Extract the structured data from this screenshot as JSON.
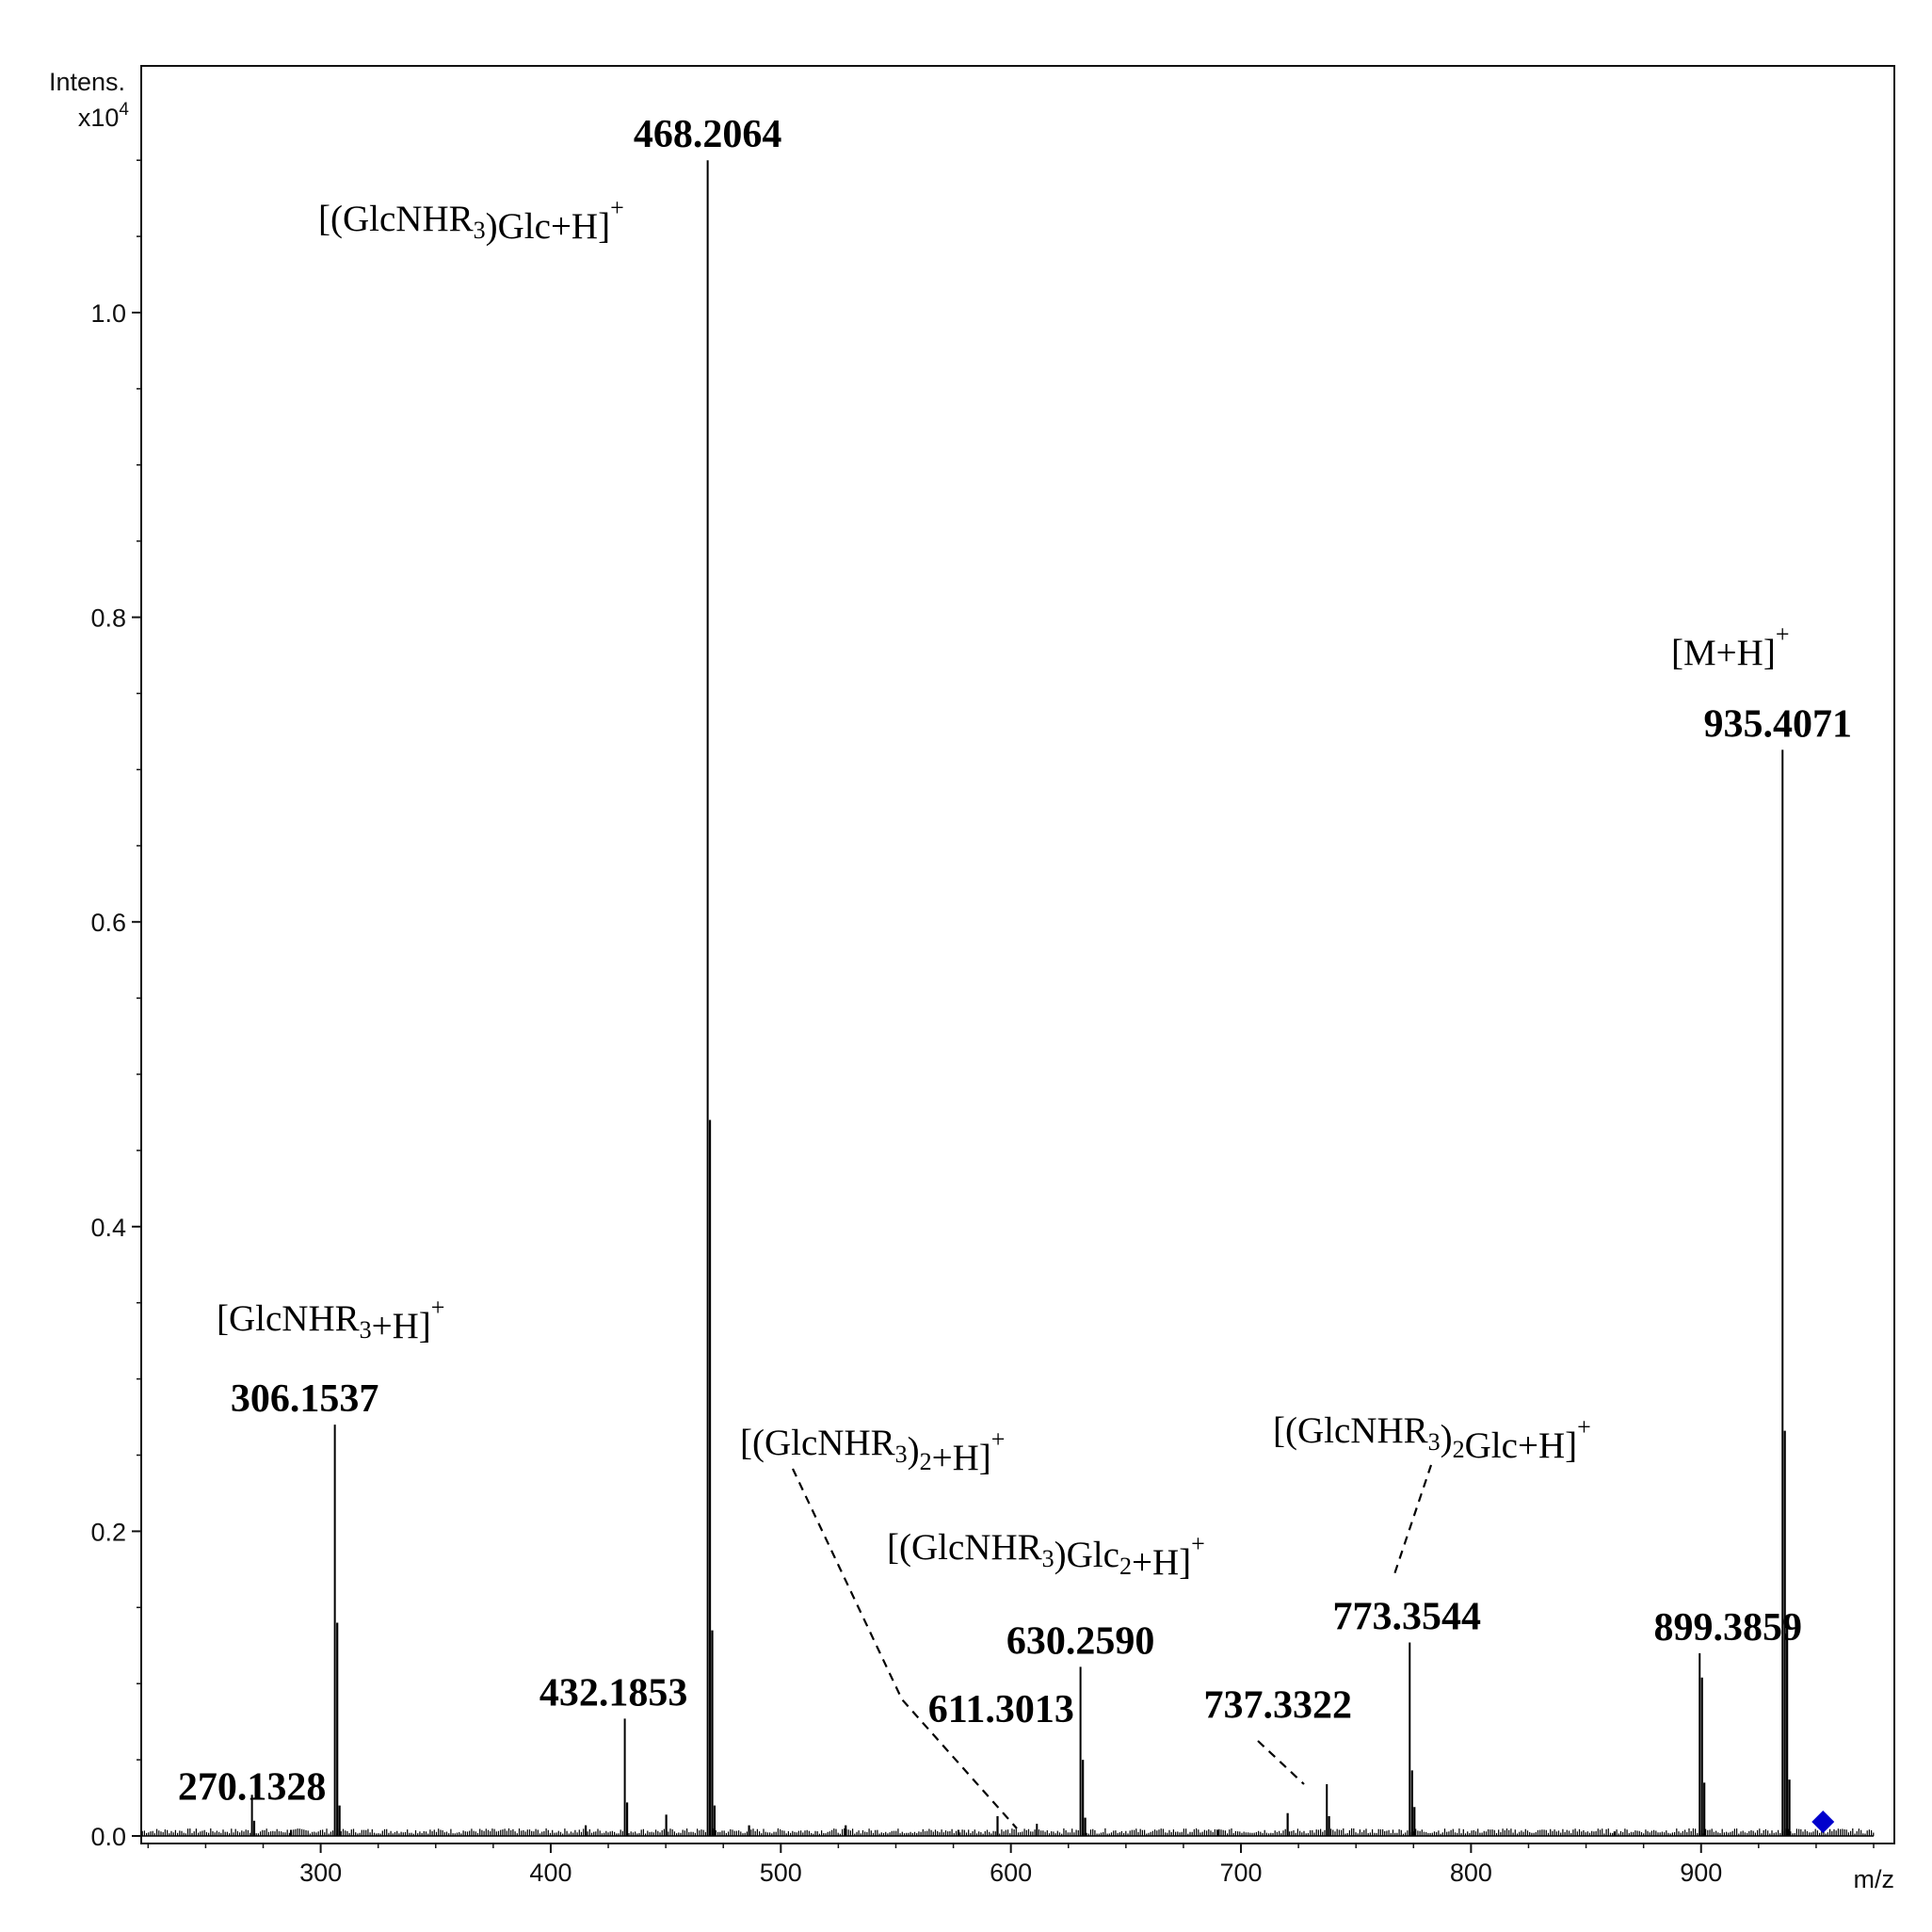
{
  "chart_data": {
    "type": "line",
    "title": "",
    "ylabel_line1": "Intens.",
    "ylabel_line2_base": "x10",
    "ylabel_line2_exp": "4",
    "xlabel": "m/z",
    "xlim": [
      222,
      984
    ],
    "ylim": [
      0,
      1.15
    ],
    "x_ticks": [
      300,
      400,
      500,
      600,
      700,
      800,
      900
    ],
    "x_tick_labels": [
      "300",
      "400",
      "500",
      "600",
      "700",
      "800",
      "900"
    ],
    "y_ticks": [
      0.0,
      0.2,
      0.4,
      0.6,
      0.8,
      1.0
    ],
    "y_tick_labels": [
      "0.0",
      "0.2",
      "0.4",
      "0.6",
      "0.8",
      "1.0"
    ],
    "grid": false,
    "peaks": [
      {
        "mz": 270.1328,
        "intensity": 0.027,
        "label": "270.1328"
      },
      {
        "mz": 306.1537,
        "intensity": 0.27,
        "label": "306.1537"
      },
      {
        "mz": 432.1853,
        "intensity": 0.077,
        "label": "432.1853"
      },
      {
        "mz": 468.2064,
        "intensity": 1.1,
        "label": "468.2064"
      },
      {
        "mz": 611.3013,
        "intensity": 0.008,
        "label": "611.3013"
      },
      {
        "mz": 630.259,
        "intensity": 0.111,
        "label": "630.2590"
      },
      {
        "mz": 737.3322,
        "intensity": 0.034,
        "label": "737.3322"
      },
      {
        "mz": 773.3544,
        "intensity": 0.127,
        "label": "773.3544"
      },
      {
        "mz": 899.3859,
        "intensity": 0.12,
        "label": "899.3859"
      },
      {
        "mz": 935.4071,
        "intensity": 0.713,
        "label": "935.4071"
      }
    ],
    "minor_peaks": [
      {
        "mz": 271.1,
        "intensity": 0.01
      },
      {
        "mz": 307.2,
        "intensity": 0.14
      },
      {
        "mz": 308.2,
        "intensity": 0.02
      },
      {
        "mz": 433.2,
        "intensity": 0.022
      },
      {
        "mz": 450.2,
        "intensity": 0.014
      },
      {
        "mz": 469.2,
        "intensity": 0.47
      },
      {
        "mz": 470.2,
        "intensity": 0.135
      },
      {
        "mz": 471.2,
        "intensity": 0.02
      },
      {
        "mz": 486.2,
        "intensity": 0.007
      },
      {
        "mz": 528.2,
        "intensity": 0.007
      },
      {
        "mz": 594.2,
        "intensity": 0.013
      },
      {
        "mz": 631.3,
        "intensity": 0.05
      },
      {
        "mz": 632.3,
        "intensity": 0.012
      },
      {
        "mz": 720.3,
        "intensity": 0.015
      },
      {
        "mz": 738.3,
        "intensity": 0.013
      },
      {
        "mz": 774.4,
        "intensity": 0.043
      },
      {
        "mz": 775.4,
        "intensity": 0.019
      },
      {
        "mz": 900.4,
        "intensity": 0.104
      },
      {
        "mz": 901.4,
        "intensity": 0.035
      },
      {
        "mz": 936.4,
        "intensity": 0.266
      },
      {
        "mz": 937.4,
        "intensity": 0.137
      },
      {
        "mz": 938.4,
        "intensity": 0.037
      },
      {
        "mz": 415.2,
        "intensity": 0.007
      },
      {
        "mz": 577.2,
        "intensity": 0.004
      },
      {
        "mz": 690.3,
        "intensity": 0.004
      },
      {
        "mz": 862.4,
        "intensity": 0.003
      },
      {
        "mz": 287.1,
        "intensity": 0.004
      }
    ],
    "precursor_marker": {
      "mz": 953,
      "intensity": 0.008,
      "color": "#0000cc",
      "shape": "diamond"
    },
    "ion_annotations": [
      {
        "id": "glcnhr3-glc",
        "parts": [
          [
            "[(GlcNHR",
            ""
          ],
          [
            "3",
            "sub"
          ],
          [
            ")Glc+H]",
            ""
          ],
          [
            "+",
            "sup"
          ]
        ],
        "for_mz": 468.2064
      },
      {
        "id": "glcnhr3",
        "parts": [
          [
            "[GlcNHR",
            ""
          ],
          [
            "3",
            "sub"
          ],
          [
            "+H]",
            ""
          ],
          [
            "+",
            "sup"
          ]
        ],
        "for_mz": 306.1537
      },
      {
        "id": "glcnhr3-2",
        "parts": [
          [
            "[(GlcNHR",
            ""
          ],
          [
            "3",
            "sub"
          ],
          [
            ")",
            ""
          ],
          [
            "2",
            "sub"
          ],
          [
            "+H]",
            ""
          ],
          [
            "+",
            "sup"
          ]
        ],
        "for_mz": 611.3013
      },
      {
        "id": "glcnhr3-glc2",
        "parts": [
          [
            "[(GlcNHR",
            ""
          ],
          [
            "3",
            "sub"
          ],
          [
            ")Glc",
            ""
          ],
          [
            "2",
            "sub"
          ],
          [
            "+H]",
            ""
          ],
          [
            "+",
            "sup"
          ]
        ],
        "for_mz": 630.259
      },
      {
        "id": "glcnhr3-2-glc",
        "parts": [
          [
            "[(GlcNHR",
            ""
          ],
          [
            "3",
            "sub"
          ],
          [
            ")",
            ""
          ],
          [
            "2",
            "sub"
          ],
          [
            "Glc+H]",
            ""
          ],
          [
            "+",
            "sup"
          ]
        ],
        "for_mz": 773.3544
      },
      {
        "id": "m-h",
        "parts": [
          [
            "[M+H]",
            ""
          ],
          [
            "+",
            "sup"
          ]
        ],
        "for_mz": 935.4071
      }
    ],
    "colors": {
      "axis": "#111111",
      "trace": "#000000",
      "dashed": "#000000"
    }
  }
}
